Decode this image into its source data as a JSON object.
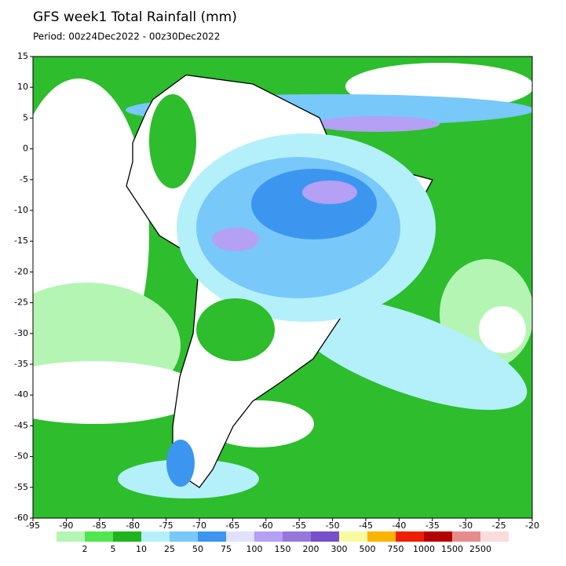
{
  "header": {
    "title": "GFS week1 Total Rainfall (mm)",
    "period": "Period: 00z24Dec2022 - 00z30Dec2022"
  },
  "map": {
    "lon_range": [
      -95,
      -20
    ],
    "lat_range": [
      -60,
      15
    ],
    "lon_ticks": [
      -95,
      -90,
      -85,
      -80,
      -75,
      -70,
      -65,
      -60,
      -55,
      -50,
      -45,
      -40,
      -35,
      -30,
      -25,
      -20
    ],
    "lat_ticks": [
      15,
      10,
      5,
      0,
      -5,
      -10,
      -15,
      -20,
      -25,
      -30,
      -35,
      -40,
      -45,
      -50,
      -55,
      -60
    ]
  },
  "colorbar": {
    "levels": [
      2,
      5,
      10,
      25,
      50,
      75,
      100,
      150,
      200,
      300,
      500,
      750,
      1000,
      1500,
      2500
    ],
    "colors": [
      "#b4f5b4",
      "#50e650",
      "#1eb41e",
      "#b4f0fa",
      "#78c8fa",
      "#3c96f0",
      "#e1e1ff",
      "#b4a0f5",
      "#9678dc",
      "#7850c8",
      "#fafaa0",
      "#fab400",
      "#f01e00",
      "#b40000",
      "#e68c8c",
      "#fadcdc"
    ]
  }
}
